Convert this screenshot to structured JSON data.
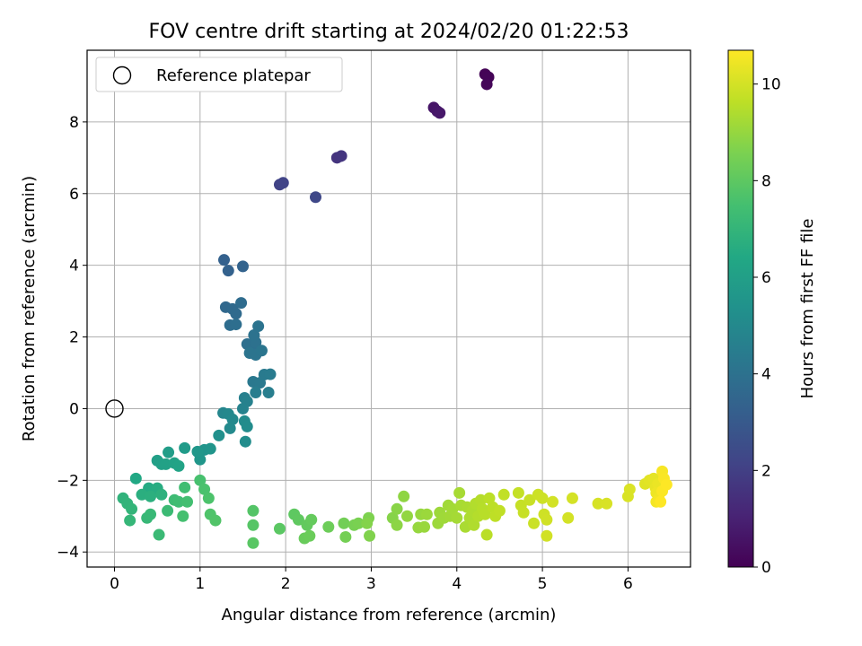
{
  "chart_data": {
    "type": "scatter",
    "title": "FOV centre drift starting at 2024/02/20 01:22:53",
    "xlabel": "Angular distance from reference (arcmin)",
    "ylabel": "Rotation from reference (arcmin)",
    "xlim": [
      -0.32,
      6.73
    ],
    "ylim": [
      -4.42,
      10.0
    ],
    "x_ticks": [
      0,
      1,
      2,
      3,
      4,
      5,
      6
    ],
    "y_ticks": [
      -4,
      -2,
      0,
      2,
      4,
      6,
      8
    ],
    "grid": true,
    "legend": {
      "position": "top-left",
      "entries": [
        {
          "label": "Reference platepar",
          "marker": "open-circle",
          "x": 0,
          "y": 0
        }
      ]
    },
    "colorbar": {
      "label": "Hours from first FF file",
      "range": [
        0,
        10.7
      ],
      "ticks": [
        0,
        2,
        4,
        6,
        8,
        10
      ],
      "colormap": "viridis"
    },
    "points": [
      [
        4.33,
        9.33,
        0.05
      ],
      [
        4.37,
        9.25,
        0.1
      ],
      [
        4.35,
        9.05,
        0.15
      ],
      [
        3.73,
        8.4,
        0.6
      ],
      [
        3.77,
        8.3,
        0.65
      ],
      [
        3.8,
        8.25,
        0.7
      ],
      [
        2.6,
        7.0,
        1.6
      ],
      [
        2.65,
        7.05,
        1.65
      ],
      [
        1.93,
        6.25,
        2.1
      ],
      [
        1.97,
        6.3,
        2.15
      ],
      [
        2.35,
        5.9,
        2.3
      ],
      [
        1.28,
        4.15,
        3.3
      ],
      [
        1.33,
        3.85,
        3.35
      ],
      [
        1.5,
        3.97,
        3.4
      ],
      [
        1.3,
        2.83,
        3.6
      ],
      [
        1.38,
        2.78,
        3.65
      ],
      [
        1.42,
        2.65,
        3.7
      ],
      [
        1.48,
        2.95,
        3.75
      ],
      [
        1.35,
        2.33,
        3.8
      ],
      [
        1.42,
        2.35,
        3.85
      ],
      [
        1.55,
        1.8,
        3.9
      ],
      [
        1.6,
        1.75,
        3.95
      ],
      [
        1.65,
        1.85,
        4.0
      ],
      [
        1.63,
        2.05,
        4.02
      ],
      [
        1.68,
        2.3,
        4.05
      ],
      [
        1.58,
        1.55,
        4.1
      ],
      [
        1.65,
        1.5,
        4.12
      ],
      [
        1.72,
        1.62,
        4.15
      ],
      [
        1.62,
        0.75,
        4.3
      ],
      [
        1.7,
        0.72,
        4.33
      ],
      [
        1.75,
        0.95,
        4.36
      ],
      [
        1.82,
        0.96,
        4.4
      ],
      [
        1.65,
        0.45,
        4.5
      ],
      [
        1.8,
        0.45,
        4.52
      ],
      [
        1.52,
        0.3,
        4.6
      ],
      [
        1.55,
        0.2,
        4.65
      ],
      [
        1.5,
        0.0,
        4.7
      ],
      [
        1.27,
        -0.12,
        4.9
      ],
      [
        1.33,
        -0.15,
        4.95
      ],
      [
        1.38,
        -0.3,
        5.0
      ],
      [
        1.35,
        -0.55,
        5.05
      ],
      [
        1.52,
        -0.35,
        5.1
      ],
      [
        1.55,
        -0.5,
        5.15
      ],
      [
        1.53,
        -0.92,
        5.2
      ],
      [
        1.22,
        -0.75,
        5.3
      ],
      [
        1.05,
        -1.15,
        5.5
      ],
      [
        1.12,
        -1.12,
        5.55
      ],
      [
        1.0,
        -1.42,
        5.6
      ],
      [
        0.97,
        -1.2,
        5.65
      ],
      [
        0.82,
        -1.1,
        5.8
      ],
      [
        0.63,
        -1.22,
        5.9
      ],
      [
        0.5,
        -1.45,
        6.0
      ],
      [
        0.55,
        -1.55,
        6.05
      ],
      [
        0.6,
        -1.55,
        6.1
      ],
      [
        0.7,
        -1.52,
        6.15
      ],
      [
        0.75,
        -1.6,
        6.2
      ],
      [
        0.25,
        -1.95,
        6.4
      ],
      [
        0.4,
        -2.22,
        6.5
      ],
      [
        0.45,
        -2.3,
        6.55
      ],
      [
        0.5,
        -2.22,
        6.6
      ],
      [
        0.32,
        -2.4,
        6.7
      ],
      [
        0.42,
        -2.45,
        6.75
      ],
      [
        0.55,
        -2.4,
        6.8
      ],
      [
        0.1,
        -2.5,
        6.9
      ],
      [
        0.15,
        -2.65,
        6.95
      ],
      [
        0.2,
        -2.8,
        7.0
      ],
      [
        0.18,
        -3.12,
        7.05
      ],
      [
        0.38,
        -3.05,
        7.1
      ],
      [
        0.42,
        -2.95,
        7.15
      ],
      [
        0.52,
        -3.52,
        7.2
      ],
      [
        0.62,
        -2.85,
        7.25
      ],
      [
        0.7,
        -2.55,
        7.3
      ],
      [
        0.75,
        -2.6,
        7.35
      ],
      [
        0.82,
        -2.2,
        7.4
      ],
      [
        0.85,
        -2.6,
        7.45
      ],
      [
        0.8,
        -3.0,
        7.5
      ],
      [
        1.0,
        -2.0,
        7.55
      ],
      [
        1.05,
        -2.25,
        7.6
      ],
      [
        1.1,
        -2.5,
        7.65
      ],
      [
        1.12,
        -2.95,
        7.7
      ],
      [
        1.18,
        -3.12,
        7.75
      ],
      [
        1.62,
        -2.85,
        7.8
      ],
      [
        1.62,
        -3.25,
        7.85
      ],
      [
        1.62,
        -3.75,
        7.9
      ],
      [
        1.93,
        -3.35,
        7.95
      ],
      [
        2.1,
        -2.95,
        8.0
      ],
      [
        2.15,
        -3.1,
        8.05
      ],
      [
        2.25,
        -3.25,
        8.1
      ],
      [
        2.3,
        -3.1,
        8.15
      ],
      [
        2.22,
        -3.62,
        8.2
      ],
      [
        2.28,
        -3.55,
        8.25
      ],
      [
        2.5,
        -3.3,
        8.3
      ],
      [
        2.68,
        -3.2,
        8.4
      ],
      [
        2.7,
        -3.58,
        8.45
      ],
      [
        2.8,
        -3.25,
        8.5
      ],
      [
        2.85,
        -3.2,
        8.55
      ],
      [
        2.97,
        -3.05,
        8.6
      ],
      [
        2.98,
        -3.55,
        8.65
      ],
      [
        2.95,
        -3.2,
        8.7
      ],
      [
        3.25,
        -3.05,
        8.75
      ],
      [
        3.3,
        -2.8,
        8.8
      ],
      [
        3.3,
        -3.25,
        8.85
      ],
      [
        3.38,
        -2.45,
        8.9
      ],
      [
        3.42,
        -3.0,
        8.95
      ],
      [
        3.55,
        -3.32,
        9.0
      ],
      [
        3.58,
        -2.95,
        9.02
      ],
      [
        3.62,
        -3.3,
        9.05
      ],
      [
        3.65,
        -2.95,
        9.08
      ],
      [
        3.78,
        -3.2,
        9.1
      ],
      [
        3.8,
        -2.9,
        9.12
      ],
      [
        3.85,
        -3.05,
        9.15
      ],
      [
        3.9,
        -2.7,
        9.18
      ],
      [
        3.92,
        -3.0,
        9.2
      ],
      [
        3.95,
        -2.8,
        9.22
      ],
      [
        4.0,
        -3.05,
        9.25
      ],
      [
        4.03,
        -2.35,
        9.28
      ],
      [
        4.05,
        -2.7,
        9.3
      ],
      [
        4.1,
        -3.3,
        9.32
      ],
      [
        4.12,
        -2.75,
        9.35
      ],
      [
        4.15,
        -3.05,
        9.38
      ],
      [
        4.18,
        -2.85,
        9.4
      ],
      [
        4.2,
        -3.25,
        9.42
      ],
      [
        4.22,
        -2.65,
        9.45
      ],
      [
        4.25,
        -3.0,
        9.48
      ],
      [
        4.28,
        -2.55,
        9.5
      ],
      [
        4.3,
        -2.8,
        9.52
      ],
      [
        4.33,
        -2.95,
        9.55
      ],
      [
        4.35,
        -3.52,
        9.58
      ],
      [
        4.38,
        -2.5,
        9.6
      ],
      [
        4.42,
        -2.75,
        9.62
      ],
      [
        4.45,
        -3.0,
        9.65
      ],
      [
        4.5,
        -2.85,
        9.68
      ],
      [
        4.55,
        -2.4,
        9.7
      ],
      [
        4.72,
        -2.35,
        9.75
      ],
      [
        4.75,
        -2.7,
        9.78
      ],
      [
        4.78,
        -2.9,
        9.8
      ],
      [
        4.85,
        -2.55,
        9.82
      ],
      [
        4.9,
        -3.2,
        9.85
      ],
      [
        4.95,
        -2.4,
        9.88
      ],
      [
        5.0,
        -2.5,
        9.9
      ],
      [
        5.02,
        -2.95,
        9.92
      ],
      [
        5.05,
        -3.1,
        9.94
      ],
      [
        5.05,
        -3.55,
        9.96
      ],
      [
        5.12,
        -2.6,
        9.98
      ],
      [
        5.3,
        -3.05,
        10.0
      ],
      [
        5.35,
        -2.5,
        10.02
      ],
      [
        5.65,
        -2.65,
        10.05
      ],
      [
        5.75,
        -2.65,
        10.08
      ],
      [
        6.0,
        -2.45,
        10.1
      ],
      [
        6.02,
        -2.25,
        10.12
      ],
      [
        6.2,
        -2.1,
        10.2
      ],
      [
        6.25,
        -2.0,
        10.25
      ],
      [
        6.3,
        -1.95,
        10.3
      ],
      [
        6.32,
        -2.2,
        10.35
      ],
      [
        6.35,
        -2.1,
        10.4
      ],
      [
        6.33,
        -2.35,
        10.45
      ],
      [
        6.36,
        -2.5,
        10.5
      ],
      [
        6.33,
        -2.6,
        10.55
      ],
      [
        6.4,
        -1.75,
        10.6
      ],
      [
        6.42,
        -1.95,
        10.63
      ],
      [
        6.4,
        -2.3,
        10.66
      ],
      [
        6.38,
        -2.6,
        10.7
      ],
      [
        6.45,
        -2.12,
        10.7
      ]
    ]
  }
}
